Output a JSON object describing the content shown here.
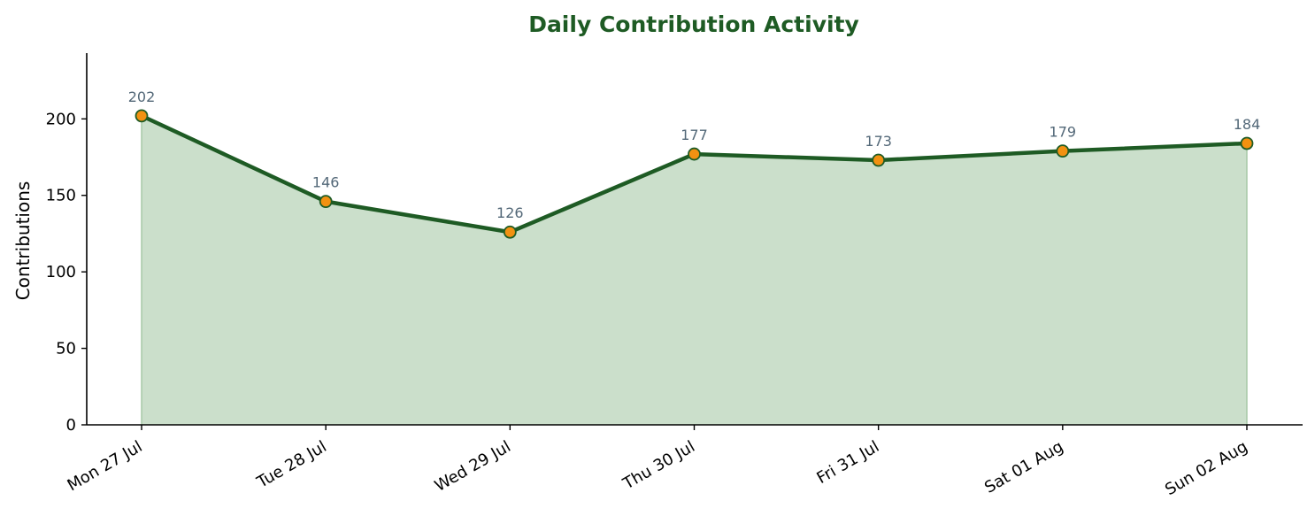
{
  "chart_data": {
    "type": "area",
    "title": "Daily Contribution Activity",
    "xlabel": "",
    "ylabel": "Contributions",
    "categories": [
      "Mon 27 Jul",
      "Tue 28 Jul",
      "Wed 29 Jul",
      "Thu 30 Jul",
      "Fri 31 Jul",
      "Sat 01 Aug",
      "Sun 02 Aug"
    ],
    "series": [
      {
        "values": [
          202,
          146,
          126,
          177,
          173,
          179,
          184
        ]
      }
    ],
    "data_labels": [
      "202",
      "146",
      "126",
      "177",
      "173",
      "179",
      "184"
    ],
    "ylim": [
      0,
      243
    ],
    "yticks": [
      0,
      50,
      100,
      150,
      200
    ],
    "ytick_labels": [
      "0",
      "50",
      "100",
      "150",
      "200"
    ],
    "grid": false,
    "legend": "none",
    "colors": {
      "title": "#1e5b24",
      "line": "#1e5b24",
      "fill": "#cbdfcb",
      "fill_edge": "#a7c9a7",
      "marker_fill": "#f29111",
      "marker_edge": "#1e5b24",
      "data_label": "#536878",
      "axis": "#000000"
    }
  }
}
